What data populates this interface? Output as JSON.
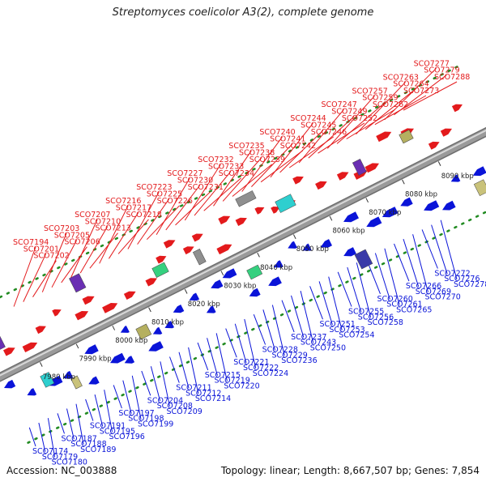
{
  "title": "Streptomyces coelicolor A3(2), complete genome",
  "footer": {
    "accession": "Accession: NC_003888",
    "topology": "Topology: linear; Length: 8,667,507 bp; Genes: 7,854"
  },
  "colors": {
    "forward": "#e31a1c",
    "reverse": "#0a14d8",
    "backbone": "#9a9a9a",
    "dots": "#228b22"
  },
  "ticks": [
    "7980 kbp",
    "7990 kbp",
    "8000 kbp",
    "8010 kbp",
    "8020 kbp",
    "8030 kbp",
    "8040 kbp",
    "8050 kbp",
    "8060 kbp",
    "8070 kbp",
    "8080 kbp",
    "8090 kbp"
  ],
  "red_labels": [
    "SCO7194",
    "SCO7201",
    "SCO7202",
    "SCO7203",
    "SCO7205",
    "SCO7206",
    "SCO7207",
    "SCO7210",
    "SCO7213",
    "SCO7216",
    "SCO7217",
    "SCO7218",
    "SCO7223",
    "SCO7225",
    "SCO7226",
    "SCO7227",
    "SCO7230",
    "SCO7231",
    "SCO7232",
    "SCO7233",
    "SCO7234",
    "SCO7235",
    "SCO7238",
    "SCO7239",
    "SCO7240",
    "SCO7241",
    "SCO7242",
    "SCO7244",
    "SCO7245",
    "SCO7246",
    "SCO7247",
    "SCO7249",
    "SCO7252",
    "SCO7257",
    "SCO7259",
    "SCO7262",
    "SCO7263",
    "SCO7264",
    "SCO7273",
    "SCO7277",
    "SCO7279",
    "SCO7288"
  ],
  "blue_labels": [
    "SCO7174",
    "SCO7179",
    "SCO7180",
    "SCO7187",
    "SCO7188",
    "SCO7189",
    "SCO7191",
    "SCO7195",
    "SCO7196",
    "SCO7197",
    "SCO7198",
    "SCO7199",
    "SCO7204",
    "SCO7208",
    "SCO7209",
    "SCO7211",
    "SCO7212",
    "SCO7214",
    "SCO7215",
    "SCO7219",
    "SCO7220",
    "SCO7221",
    "SCO7222",
    "SCO7224",
    "SCO7228",
    "SCO7229",
    "SCO7236",
    "SCO7237",
    "SCO7243",
    "SCO7250",
    "SCO7251",
    "SCO7253",
    "SCO7254",
    "SCO7255",
    "SCO7256",
    "SCO7258",
    "SCO7260",
    "SCO7261",
    "SCO7265",
    "SCO7266",
    "SCO7269",
    "SCO7270",
    "SCO7272",
    "SCO7276",
    "SCO7278"
  ]
}
